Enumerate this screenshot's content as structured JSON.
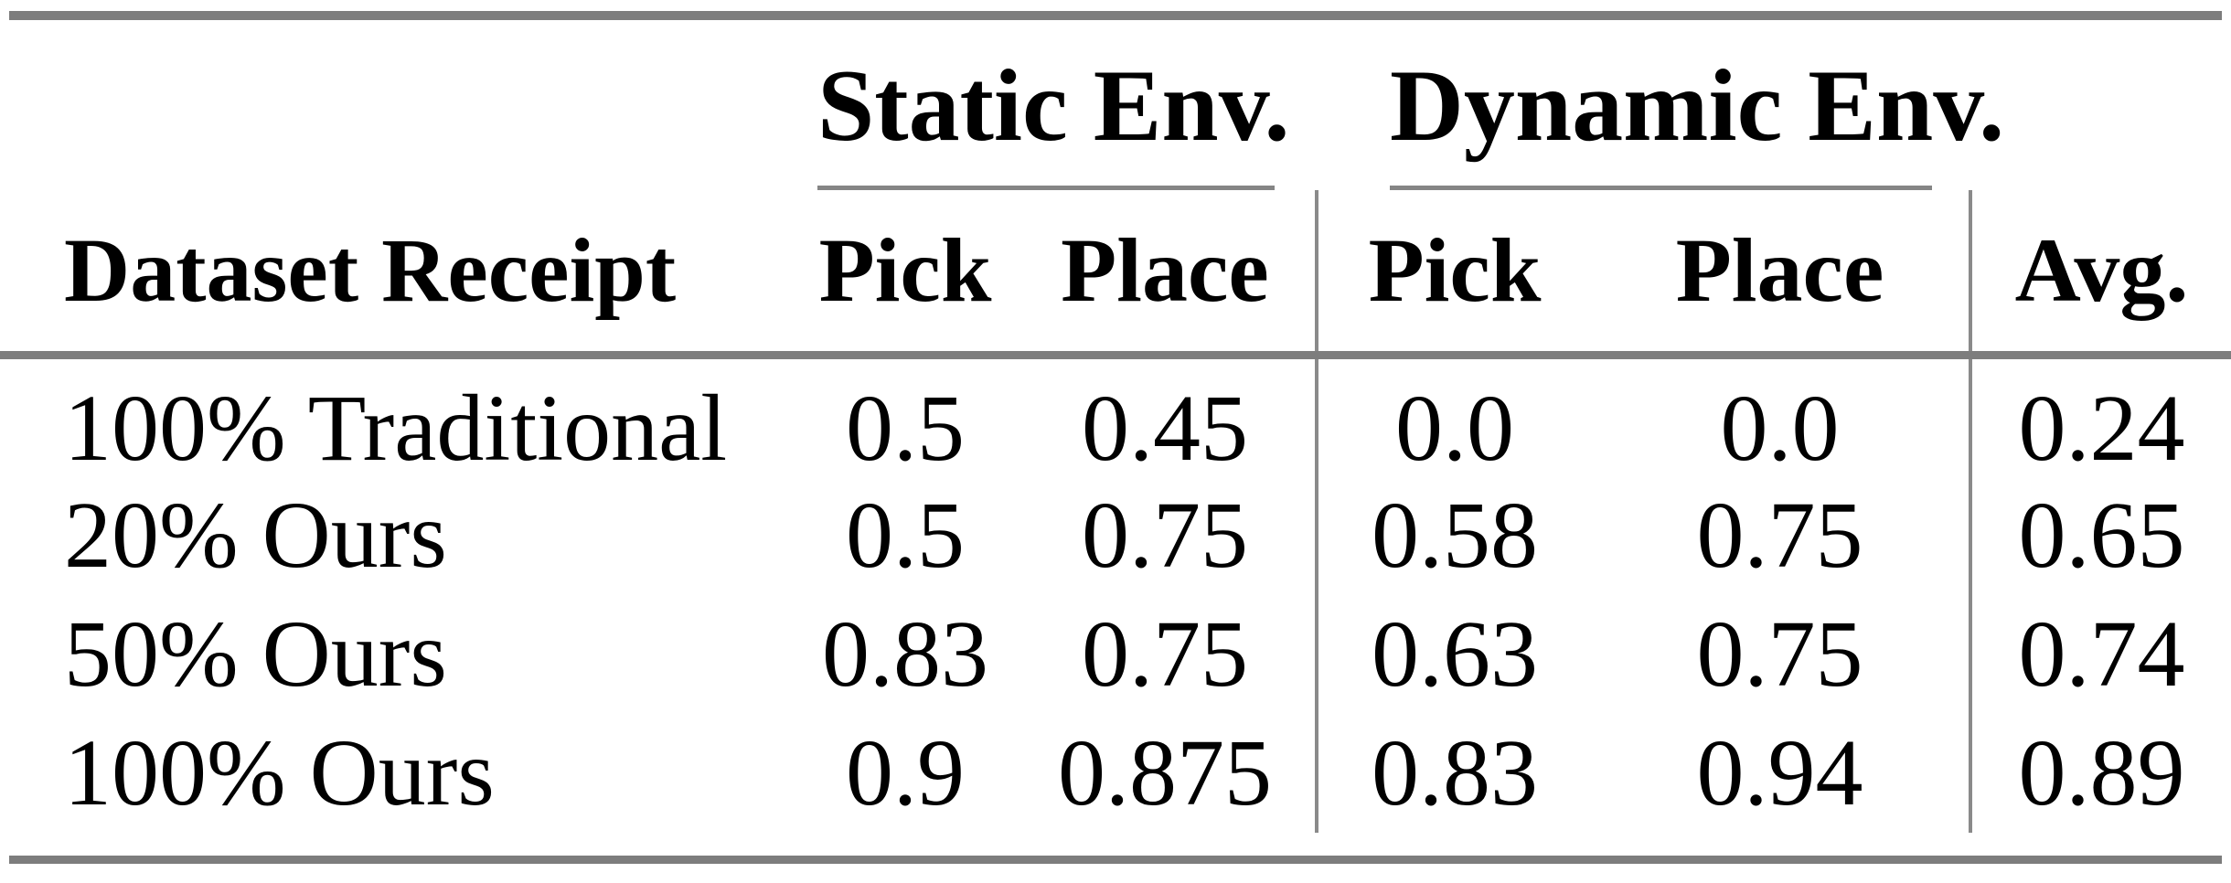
{
  "colors": {
    "rule": "#7d7d7d",
    "separator": "#8a8a8a",
    "text": "#000000",
    "background": "#ffffff"
  },
  "table": {
    "group_headers": {
      "static": "Static Env.",
      "dynamic": "Dynamic Env."
    },
    "columns": {
      "dataset": "Dataset Receipt",
      "static_pick": "Pick",
      "static_place": "Place",
      "dynamic_pick": "Pick",
      "dynamic_place": "Place",
      "avg": "Avg."
    },
    "rows": [
      [
        "100% Traditional",
        "0.5",
        "0.45",
        "0.0",
        "0.0",
        "0.24"
      ],
      [
        "20% Ours",
        "0.5",
        "0.75",
        "0.58",
        "0.75",
        "0.65"
      ],
      [
        "50% Ours",
        "0.83",
        "0.75",
        "0.63",
        "0.75",
        "0.74"
      ],
      [
        "100% Ours",
        "0.9",
        "0.875",
        "0.83",
        "0.94",
        "0.89"
      ]
    ]
  },
  "chart_data": {
    "type": "table",
    "columns": [
      "Dataset Receipt",
      "Static Env. Pick",
      "Static Env. Place",
      "Dynamic Env. Pick",
      "Dynamic Env. Place",
      "Avg."
    ],
    "rows": [
      [
        "100% Traditional",
        0.5,
        0.45,
        0.0,
        0.0,
        0.24
      ],
      [
        "20% Ours",
        0.5,
        0.75,
        0.58,
        0.75,
        0.65
      ],
      [
        "50% Ours",
        0.83,
        0.75,
        0.63,
        0.75,
        0.74
      ],
      [
        "100% Ours",
        0.9,
        0.875,
        0.83,
        0.94,
        0.89
      ]
    ]
  }
}
